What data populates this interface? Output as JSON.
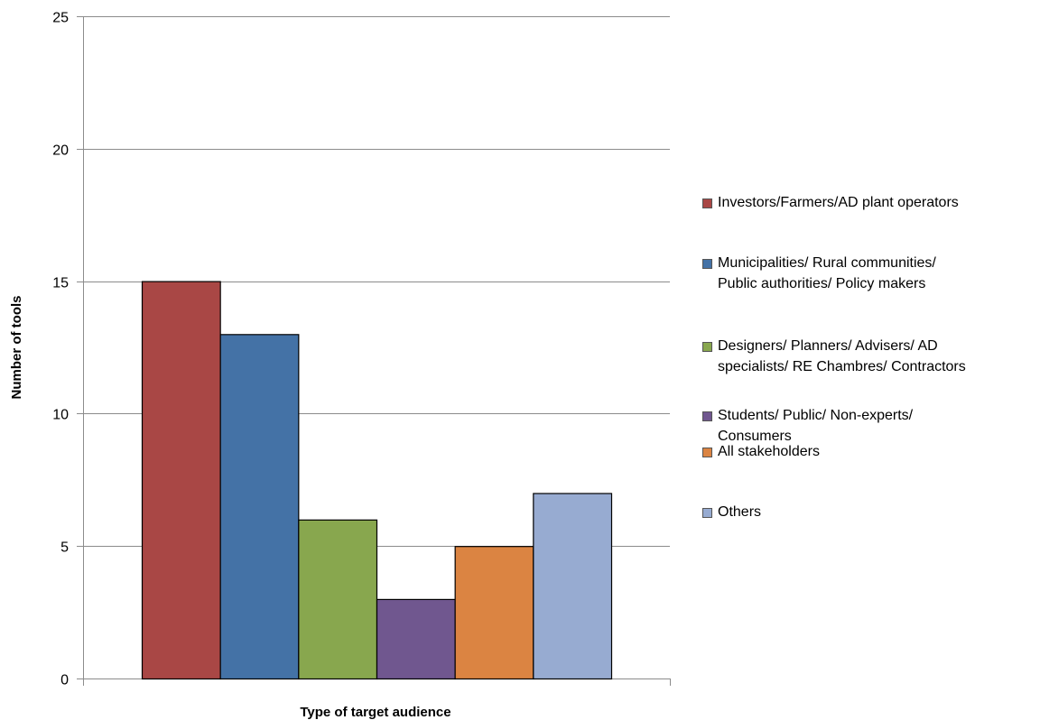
{
  "chart_data": {
    "type": "bar",
    "categories": [
      "Investors/Farmers/AD plant operators",
      "Municipalities/ Rural communities/ Public authorities/ Policy makers",
      "Designers/ Planners/ Advisers/ AD specialists/ RE Chambres/ Contractors",
      "Students/ Public/ Non-experts/ Consumers",
      "All stakeholders",
      "Others"
    ],
    "values": [
      15,
      13,
      6,
      3,
      5,
      7
    ],
    "colors": [
      "#a94745",
      "#4472a6",
      "#88a74e",
      "#70578f",
      "#db8442",
      "#97abd1"
    ],
    "title": "",
    "xlabel": "Type of target audience",
    "ylabel": "Number of tools",
    "ylim": [
      0,
      25
    ],
    "yticks": [
      0,
      5,
      10,
      15,
      20,
      25
    ],
    "ytick_labels": [
      "0",
      "5",
      "10",
      "15",
      "20",
      "25"
    ],
    "grid": true,
    "legend_position": "right",
    "legend": [
      {
        "lines": [
          "Investors/Farmers/AD plant operators"
        ]
      },
      {
        "lines": [
          "Municipalities/ Rural communities/",
          "Public authorities/ Policy makers"
        ]
      },
      {
        "lines": [
          "Designers/ Planners/ Advisers/ AD",
          "specialists/ RE Chambres/ Contractors"
        ]
      },
      {
        "lines": [
          "Students/ Public/ Non-experts/",
          "Consumers"
        ]
      },
      {
        "lines": [
          "All stakeholders"
        ]
      },
      {
        "lines": [
          "Others"
        ]
      }
    ]
  }
}
